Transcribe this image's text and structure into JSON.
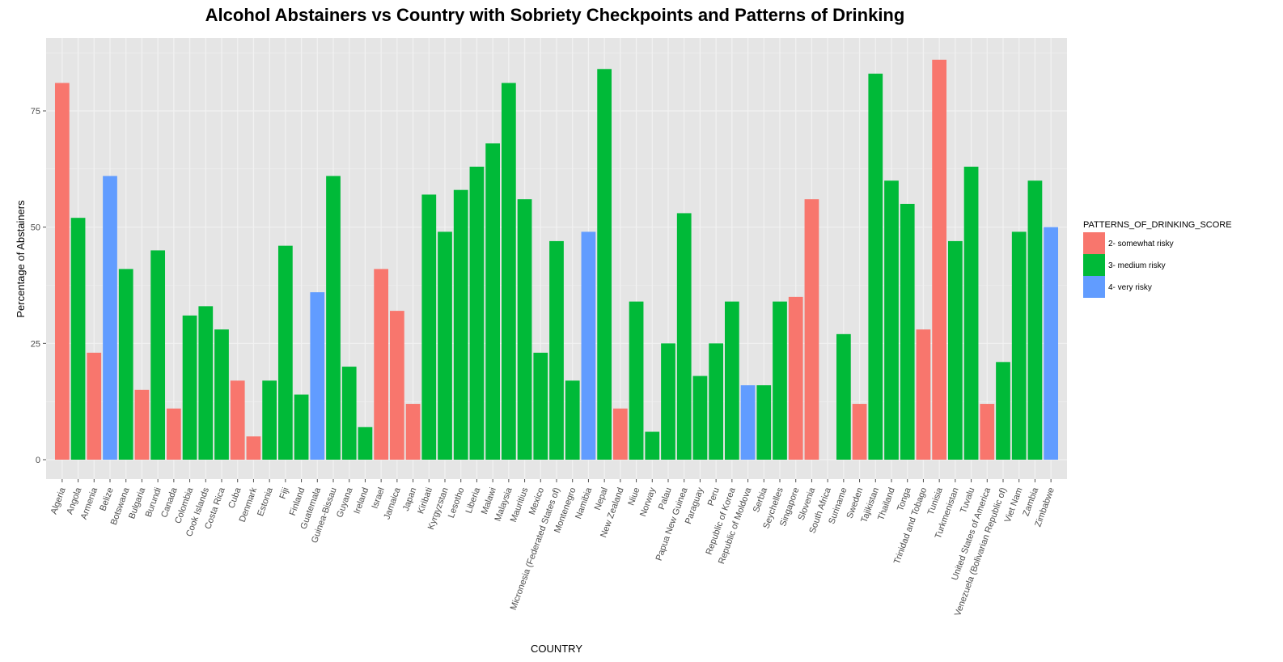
{
  "chart_data": {
    "type": "bar",
    "title": "Alcohol Abstainers vs Country with Sobriety Checkpoints and Patterns of Drinking",
    "xlabel": "COUNTRY",
    "ylabel": "Percentage of Abstainers",
    "ylim": [
      0,
      91
    ],
    "yticks": [
      0,
      25,
      50,
      75
    ],
    "grid": true,
    "legend": {
      "title": "PATTERNS_OF_DRINKING_SCORE",
      "position": "right",
      "entries": [
        {
          "key": "2",
          "label": "2- somewhat risky",
          "color": "#F8766D"
        },
        {
          "key": "3",
          "label": "3- medium risky",
          "color": "#00BA38"
        },
        {
          "key": "4",
          "label": "4- very risky",
          "color": "#619CFF"
        }
      ]
    },
    "categories": [
      "Algeria",
      "Angola",
      "Armenia",
      "Belize",
      "Botswana",
      "Bulgaria",
      "Burundi",
      "Canada",
      "Colombia",
      "Cook Islands",
      "Costa Rica",
      "Cuba",
      "Denmark",
      "Estonia",
      "Fiji",
      "Finland",
      "Guatemala",
      "Guinea-Bissau",
      "Guyana",
      "Ireland",
      "Israel",
      "Jamaica",
      "Japan",
      "Kiribati",
      "Kyrgyzstan",
      "Lesotho",
      "Liberia",
      "Malawi",
      "Malaysia",
      "Mauritius",
      "Mexico",
      "Micronesia (Federated States of)",
      "Montenegro",
      "Namibia",
      "Nepal",
      "New Zealand",
      "Niue",
      "Norway",
      "Palau",
      "Papua New Guinea",
      "Paraguay",
      "Peru",
      "Republic of Korea",
      "Republic of Moldova",
      "Serbia",
      "Seychelles",
      "Singapore",
      "Slovenia",
      "South Africa",
      "Suriname",
      "Sweden",
      "Tajikistan",
      "Thailand",
      "Tonga",
      "Trinidad and Tobago",
      "Tunisia",
      "Turkmenistan",
      "Tuvalu",
      "United States of America",
      "Venezuela (Bolivarian Republic of)",
      "Viet Nam",
      "Zambia",
      "Zimbabwe"
    ],
    "values": [
      81,
      52,
      23,
      61,
      41,
      15,
      45,
      11,
      31,
      33,
      28,
      17,
      5,
      17,
      46,
      14,
      36,
      61,
      20,
      7,
      41,
      32,
      12,
      57,
      49,
      58,
      63,
      68,
      81,
      56,
      23,
      47,
      17,
      49,
      84,
      11,
      34,
      6,
      25,
      53,
      18,
      25,
      34,
      16,
      16,
      34,
      35,
      56,
      null,
      27,
      12,
      83,
      60,
      55,
      28,
      86,
      47,
      63,
      12,
      21,
      49,
      60,
      50
    ],
    "patterns": [
      2,
      3,
      2,
      4,
      3,
      2,
      3,
      2,
      3,
      3,
      3,
      2,
      2,
      3,
      3,
      3,
      4,
      3,
      3,
      3,
      2,
      2,
      2,
      3,
      3,
      3,
      3,
      3,
      3,
      3,
      3,
      3,
      3,
      4,
      3,
      2,
      3,
      3,
      3,
      3,
      3,
      3,
      3,
      4,
      3,
      3,
      2,
      2,
      null,
      3,
      2,
      3,
      3,
      3,
      2,
      2,
      3,
      3,
      2,
      3,
      3,
      3,
      4
    ]
  }
}
